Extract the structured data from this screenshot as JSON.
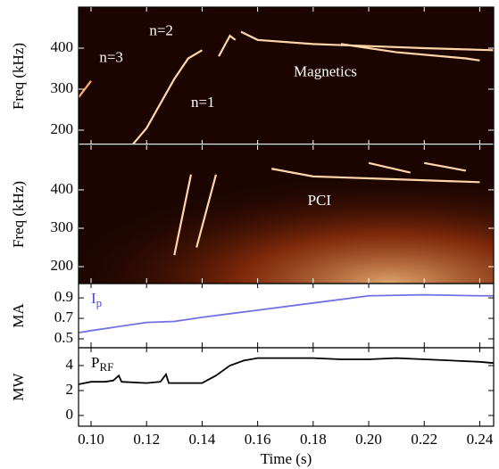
{
  "chart_data": [
    {
      "type": "spectrogram",
      "ylabel": "Freq (kHz)",
      "xlim": [
        0.0955,
        0.245
      ],
      "ylim": [
        163,
        500
      ],
      "yticks": [
        200,
        300,
        400
      ],
      "annotations": [
        "n=2",
        "n=3",
        "n=1",
        "Magnetics"
      ],
      "series": [
        {
          "color": "#ffd6a8",
          "x": [
            0.115,
            0.12,
            0.125,
            0.13,
            0.135,
            0.14
          ],
          "values": [
            165,
            205,
            265,
            325,
            375,
            395
          ]
        },
        {
          "color": "#ffb070",
          "x": [
            0.0955,
            0.1
          ],
          "values": [
            280,
            320
          ]
        },
        {
          "color": "#ffd6a8",
          "x": [
            0.146,
            0.15,
            0.152
          ],
          "values": [
            380,
            430,
            420
          ]
        },
        {
          "color": "#ffd6a8",
          "x": [
            0.154,
            0.16,
            0.18,
            0.2,
            0.22,
            0.245
          ],
          "values": [
            440,
            420,
            410,
            405,
            400,
            395
          ]
        },
        {
          "color": "#ffd6a8",
          "x": [
            0.19,
            0.21,
            0.235,
            0.24
          ],
          "values": [
            410,
            390,
            375,
            370
          ]
        }
      ]
    },
    {
      "type": "spectrogram",
      "ylabel": "Freq (kHz)",
      "xlim": [
        0.0955,
        0.245
      ],
      "ylim": [
        156,
        516
      ],
      "yticks": [
        200,
        300,
        400
      ],
      "annotations": [
        "PCI"
      ],
      "series": [
        {
          "color": "#ffd6a8",
          "x": [
            0.13,
            0.136
          ],
          "values": [
            230,
            440
          ]
        },
        {
          "color": "#ffd6a8",
          "x": [
            0.138,
            0.145
          ],
          "values": [
            250,
            440
          ]
        },
        {
          "color": "#ffd6a8",
          "x": [
            0.165,
            0.18,
            0.2,
            0.24
          ],
          "values": [
            455,
            435,
            430,
            420
          ]
        },
        {
          "color": "#ffd6a8",
          "x": [
            0.2,
            0.215
          ],
          "values": [
            470,
            445
          ]
        },
        {
          "color": "#ffd6a8",
          "x": [
            0.22,
            0.235
          ],
          "values": [
            470,
            450
          ]
        }
      ]
    },
    {
      "type": "line",
      "ylabel": "MA",
      "label_main": "I",
      "label_sub": "p",
      "label_color": "#4848d8",
      "xlim": [
        0.0955,
        0.245
      ],
      "ylim": [
        0.413,
        1.04
      ],
      "yticks": [
        0.5,
        0.7,
        0.9
      ],
      "series": [
        {
          "color": "#7070e8",
          "x": [
            0.0955,
            0.1,
            0.12,
            0.13,
            0.14,
            0.16,
            0.18,
            0.2,
            0.22,
            0.24,
            0.245
          ],
          "values": [
            0.56,
            0.58,
            0.66,
            0.67,
            0.71,
            0.78,
            0.85,
            0.92,
            0.93,
            0.92,
            0.92
          ]
        }
      ]
    },
    {
      "type": "line",
      "ylabel": "MW",
      "label_main": "P",
      "label_sub": "RF",
      "label_color": "#000000",
      "xlabel": "Time (s)",
      "xlim": [
        0.0955,
        0.245
      ],
      "ylim": [
        -0.86,
        5.43
      ],
      "yticks": [
        0,
        2,
        4
      ],
      "xticks": [
        {
          "value": 0.1,
          "label": "0.10"
        },
        {
          "value": 0.12,
          "label": "0.12"
        },
        {
          "value": 0.14,
          "label": "0.14"
        },
        {
          "value": 0.16,
          "label": "0.16"
        },
        {
          "value": 0.18,
          "label": "0.18"
        },
        {
          "value": 0.2,
          "label": "0.20"
        },
        {
          "value": 0.22,
          "label": "0.22"
        },
        {
          "value": 0.24,
          "label": "0.24"
        }
      ],
      "series": [
        {
          "color": "#000000",
          "x": [
            0.0955,
            0.1,
            0.105,
            0.108,
            0.11,
            0.111,
            0.12,
            0.125,
            0.127,
            0.128,
            0.14,
            0.145,
            0.15,
            0.155,
            0.16,
            0.17,
            0.18,
            0.19,
            0.2,
            0.21,
            0.22,
            0.23,
            0.24,
            0.245
          ],
          "values": [
            2.5,
            2.7,
            2.7,
            2.8,
            3.2,
            2.7,
            2.6,
            2.7,
            3.3,
            2.6,
            2.6,
            3.2,
            4.0,
            4.4,
            4.6,
            4.6,
            4.6,
            4.5,
            4.5,
            4.6,
            4.5,
            4.4,
            4.3,
            4.2
          ]
        }
      ]
    }
  ]
}
